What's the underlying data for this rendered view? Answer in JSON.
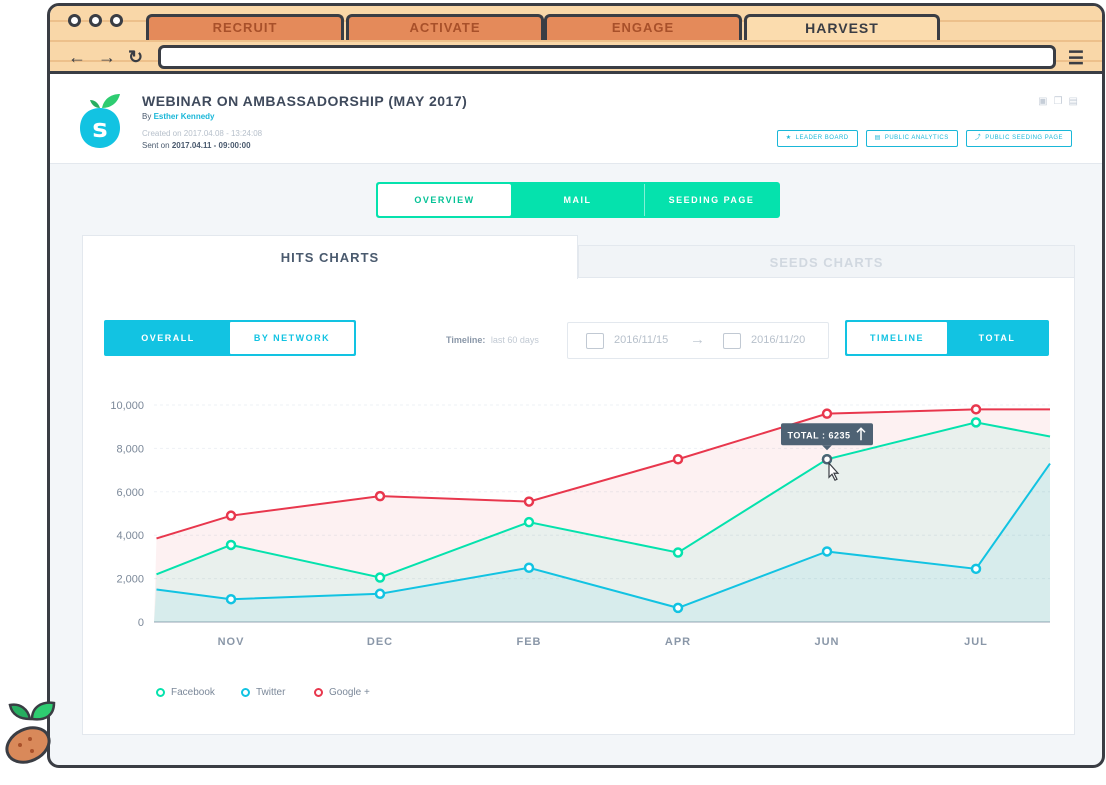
{
  "browser": {
    "tabs": [
      {
        "label": "RECRUIT"
      },
      {
        "label": "ACTIVATE"
      },
      {
        "label": "ENGAGE"
      },
      {
        "label": "HARVEST"
      }
    ],
    "active_tab": "HARVEST",
    "nav": {
      "back": "←",
      "forward": "→",
      "reload": "↻",
      "menu": "☰"
    }
  },
  "campaign": {
    "title": "WEBINAR ON AMBASSADORSHIP (MAY 2017)",
    "by_prefix": "By",
    "author": "Esther Kennedy",
    "created": "Created on 2017.04.08 - 13:24:08",
    "sent_prefix": "Sent on",
    "sent": "2017.04.11 - 09:00:00",
    "actions": [
      {
        "label": "LEADER BOARD",
        "icon": "trophy-icon"
      },
      {
        "label": "PUBLIC ANALYTICS",
        "icon": "bar-chart-icon"
      },
      {
        "label": "PUBLIC SEEDING PAGE",
        "icon": "share-icon"
      }
    ]
  },
  "main_tabs": [
    {
      "label": "OVERVIEW",
      "active": true
    },
    {
      "label": "MAIL"
    },
    {
      "label": "SEEDING PAGE"
    }
  ],
  "chart_tabs": [
    {
      "label": "HITS CHARTS",
      "active": true
    },
    {
      "label": "SEEDS CHARTS"
    }
  ],
  "filters": {
    "scope": [
      {
        "label": "OVERALL",
        "active": true
      },
      {
        "label": "BY NETWORK"
      }
    ],
    "timeline_label": "Timeline:",
    "timeline_value": "last 60 days",
    "date_from": "2016/11/15",
    "date_to": "2016/11/20",
    "mode": [
      {
        "label": "TIMELINE"
      },
      {
        "label": "TOTAL",
        "active": true
      }
    ]
  },
  "tooltip": {
    "label": "TOTAL : 6235"
  },
  "colors": {
    "facebook": "#05e2ad",
    "twitter": "#12c3e2",
    "google": "#e8374d"
  },
  "chart_data": {
    "type": "area",
    "categories": [
      "NOV",
      "DEC",
      "FEB",
      "APR",
      "JUN",
      "JUL"
    ],
    "x": [
      -0.5,
      0,
      1,
      2,
      3,
      4,
      5,
      5.5
    ],
    "ylim": [
      0,
      10000
    ],
    "yticks": [
      "0",
      "2,000",
      "4,000",
      "6,000",
      "8,000",
      "10,000"
    ],
    "grid": "horizontal",
    "legend_position": "bottom-left",
    "series": [
      {
        "name": "Facebook",
        "values": [
          2200,
          3550,
          2050,
          4600,
          3200,
          7500,
          9200,
          8550
        ]
      },
      {
        "name": "Twitter",
        "values": [
          1500,
          1050,
          1300,
          2500,
          650,
          3250,
          2450,
          7300
        ]
      },
      {
        "name": "Google +",
        "values": [
          3850,
          4900,
          5800,
          5550,
          7500,
          9600,
          9800,
          9800
        ]
      }
    ]
  }
}
